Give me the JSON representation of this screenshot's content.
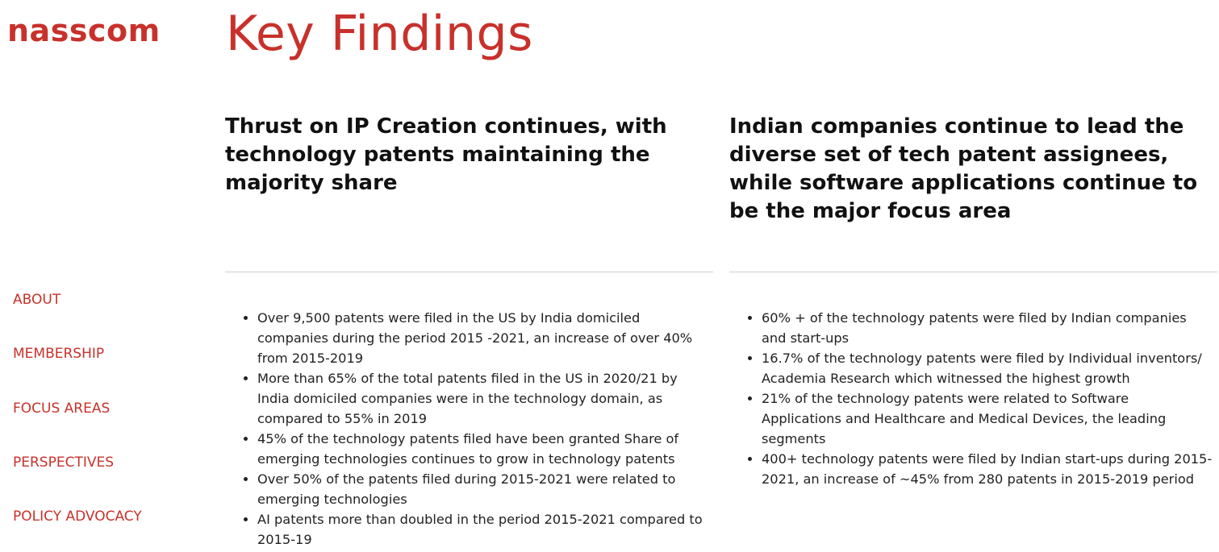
{
  "brand": {
    "logo_text": "nasscom",
    "accent_color": "#c8312b"
  },
  "page": {
    "title": "Key Findings"
  },
  "sidebar": {
    "items": [
      {
        "label": "ABOUT"
      },
      {
        "label": "MEMBERSHIP"
      },
      {
        "label": "FOCUS AREAS"
      },
      {
        "label": "PERSPECTIVES"
      },
      {
        "label": "POLICY ADVOCACY"
      }
    ]
  },
  "columns": [
    {
      "heading": "Thrust on IP Creation continues, with technology patents maintaining the majority share",
      "bullets": [
        "Over 9,500 patents were filed in the US by India domiciled companies during the period 2015 -2021, an increase of over 40% from 2015-2019",
        "More than 65% of the total patents filed in the US in 2020/21 by India domiciled companies were in the technology domain, as compared to 55% in 2019",
        "45% of the technology patents filed have been granted Share of emerging technologies continues to grow in technology patents",
        "Over 50% of the patents filed during 2015-2021 were related to emerging technologies",
        "AI patents more than doubled in the period 2015-2021 compared to 2015-19"
      ]
    },
    {
      "heading": "Indian companies continue to lead the diverse set of tech patent assignees, while software applications continue to be the major focus area",
      "bullets": [
        "60% + of the technology patents were filed by Indian companies and start-ups",
        "16.7% of the technology patents were filed by Individual inventors/ Academia Research which witnessed the highest growth",
        "21% of the technology patents were related to Software Applications and Healthcare and Medical Devices, the leading segments",
        "400+ technology patents were filed by Indian start-ups during 2015-2021, an increase of ~45% from 280 patents in 2015-2019 period"
      ]
    }
  ]
}
